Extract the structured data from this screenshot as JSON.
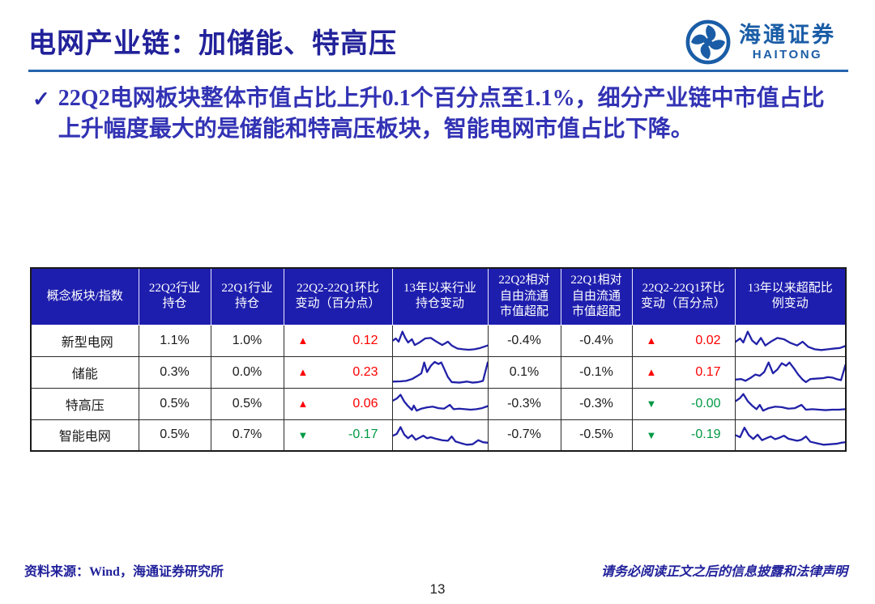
{
  "slide": {
    "title": "电网产业链：加储能、特高压",
    "page_number": "13"
  },
  "logo": {
    "name_cn": "海通证券",
    "name_en": "HAITONG"
  },
  "bullet": {
    "marker": "✓",
    "text": "22Q2电网板块整体市值占比上升0.1个百分点至1.1%，细分产业链中市值占比上升幅度最大的是储能和特高压板块，智能电网市值占比下降。"
  },
  "table": {
    "columns": [
      {
        "label": "概念板块/指数"
      },
      {
        "label": "22Q2行业\n持仓"
      },
      {
        "label": "22Q1行业\n持仓"
      },
      {
        "label": "22Q2-22Q1环比\n变动（百分点）"
      },
      {
        "label": "13年以来行业\n持仓变动"
      },
      {
        "label": "22Q2相对\n自由流通\n市值超配"
      },
      {
        "label": "22Q1相对\n自由流通\n市值超配"
      },
      {
        "label": "22Q2-22Q1环比\n变动（百分点）"
      },
      {
        "label": "13年以来超配比\n例变动"
      }
    ],
    "rows": [
      {
        "name": "新型电网",
        "q2_holding": "1.1%",
        "q1_holding": "1.0%",
        "chg_arrow": "▲",
        "chg_value": "0.12",
        "chg_color": "#FF0000",
        "ow_q2": "-0.4%",
        "ow_q1": "-0.4%",
        "ow_chg_arrow": "▲",
        "ow_chg_value": "0.02",
        "ow_chg_color": "#FF0000"
      },
      {
        "name": "储能",
        "q2_holding": "0.3%",
        "q1_holding": "0.0%",
        "chg_arrow": "▲",
        "chg_value": "0.23",
        "chg_color": "#FF0000",
        "ow_q2": "0.1%",
        "ow_q1": "-0.1%",
        "ow_chg_arrow": "▲",
        "ow_chg_value": "0.17",
        "ow_chg_color": "#FF0000"
      },
      {
        "name": "特高压",
        "q2_holding": "0.5%",
        "q1_holding": "0.5%",
        "chg_arrow": "▲",
        "chg_value": "0.06",
        "chg_color": "#FF0000",
        "ow_q2": "-0.3%",
        "ow_q1": "-0.3%",
        "ow_chg_arrow": "▼",
        "ow_chg_value": "-0.00",
        "ow_chg_color": "#009944"
      },
      {
        "name": "智能电网",
        "q2_holding": "0.5%",
        "q1_holding": "0.7%",
        "chg_arrow": "▼",
        "chg_value": "-0.17",
        "chg_color": "#009944",
        "ow_q2": "-0.7%",
        "ow_q1": "-0.5%",
        "ow_chg_arrow": "▼",
        "ow_chg_value": "-0.19",
        "ow_chg_color": "#009944"
      }
    ]
  },
  "footer": {
    "source": "资料来源：Wind，海通证券研究所",
    "disclaimer": "请务必阅读正文之后的信息披露和法律声明"
  },
  "colors": {
    "title_navy": "#22229B",
    "bullet_blue": "#3232B4",
    "accent_rule_blue": "#2565AE",
    "logo_blue": "#1A5DA6",
    "table_header_bg": "#1E1EAE",
    "table_header_text": "#FFFFFF",
    "change_cell_bg": "#D9D9D9",
    "up_red": "#FF0000",
    "down_green": "#009944",
    "sparkline": "#2121A8"
  },
  "chart_data": [
    {
      "type": "line",
      "title": "13年以来行业持仓变动",
      "xlabel": "",
      "ylabel": "",
      "grid": false,
      "legend": "none",
      "note": "sparklines per row, x 0-100 relative time since 2013, y 0-100 normalized holding level",
      "series": [
        {
          "name": "新型电网",
          "points": [
            [
              0,
              50
            ],
            [
              3,
              58
            ],
            [
              6,
              45
            ],
            [
              10,
              85
            ],
            [
              13,
              60
            ],
            [
              16,
              42
            ],
            [
              20,
              55
            ],
            [
              23,
              32
            ],
            [
              28,
              42
            ],
            [
              34,
              58
            ],
            [
              40,
              60
            ],
            [
              46,
              45
            ],
            [
              52,
              32
            ],
            [
              58,
              45
            ],
            [
              62,
              30
            ],
            [
              68,
              18
            ],
            [
              74,
              15
            ],
            [
              80,
              13
            ],
            [
              86,
              15
            ],
            [
              92,
              20
            ],
            [
              100,
              30
            ]
          ]
        },
        {
          "name": "储能",
          "points": [
            [
              0,
              12
            ],
            [
              8,
              13
            ],
            [
              14,
              15
            ],
            [
              20,
              22
            ],
            [
              26,
              35
            ],
            [
              30,
              45
            ],
            [
              33,
              88
            ],
            [
              36,
              50
            ],
            [
              40,
              75
            ],
            [
              44,
              90
            ],
            [
              48,
              82
            ],
            [
              51,
              88
            ],
            [
              55,
              55
            ],
            [
              58,
              30
            ],
            [
              62,
              10
            ],
            [
              70,
              8
            ],
            [
              78,
              12
            ],
            [
              84,
              8
            ],
            [
              90,
              10
            ],
            [
              95,
              15
            ],
            [
              100,
              88
            ]
          ]
        },
        {
          "name": "特高压",
          "points": [
            [
              0,
              62
            ],
            [
              4,
              70
            ],
            [
              8,
              85
            ],
            [
              12,
              58
            ],
            [
              16,
              40
            ],
            [
              20,
              25
            ],
            [
              22,
              42
            ],
            [
              25,
              22
            ],
            [
              30,
              30
            ],
            [
              36,
              35
            ],
            [
              42,
              38
            ],
            [
              48,
              32
            ],
            [
              54,
              30
            ],
            [
              60,
              45
            ],
            [
              64,
              28
            ],
            [
              70,
              30
            ],
            [
              76,
              28
            ],
            [
              82,
              26
            ],
            [
              88,
              28
            ],
            [
              94,
              32
            ],
            [
              100,
              40
            ]
          ]
        },
        {
          "name": "智能电网",
          "points": [
            [
              0,
              48
            ],
            [
              4,
              55
            ],
            [
              8,
              82
            ],
            [
              12,
              52
            ],
            [
              16,
              38
            ],
            [
              20,
              50
            ],
            [
              24,
              32
            ],
            [
              28,
              40
            ],
            [
              32,
              48
            ],
            [
              36,
              38
            ],
            [
              40,
              42
            ],
            [
              46,
              35
            ],
            [
              52,
              30
            ],
            [
              58,
              28
            ],
            [
              62,
              45
            ],
            [
              66,
              25
            ],
            [
              72,
              18
            ],
            [
              78,
              12
            ],
            [
              84,
              14
            ],
            [
              90,
              30
            ],
            [
              95,
              22
            ],
            [
              100,
              20
            ]
          ]
        }
      ]
    },
    {
      "type": "line",
      "title": "13年以来超配比例变动",
      "xlabel": "",
      "ylabel": "",
      "grid": false,
      "legend": "none",
      "note": "sparklines per row, x 0-100 relative time since 2013, y 0-100 normalized overweight ratio",
      "series": [
        {
          "name": "新型电网",
          "points": [
            [
              0,
              45
            ],
            [
              4,
              58
            ],
            [
              7,
              42
            ],
            [
              11,
              85
            ],
            [
              15,
              50
            ],
            [
              19,
              35
            ],
            [
              23,
              60
            ],
            [
              27,
              30
            ],
            [
              32,
              45
            ],
            [
              38,
              60
            ],
            [
              44,
              55
            ],
            [
              50,
              40
            ],
            [
              56,
              30
            ],
            [
              61,
              45
            ],
            [
              66,
              25
            ],
            [
              72,
              15
            ],
            [
              78,
              12
            ],
            [
              84,
              15
            ],
            [
              90,
              18
            ],
            [
              95,
              20
            ],
            [
              100,
              28
            ]
          ]
        },
        {
          "name": "储能",
          "points": [
            [
              0,
              20
            ],
            [
              5,
              22
            ],
            [
              9,
              15
            ],
            [
              14,
              28
            ],
            [
              18,
              40
            ],
            [
              22,
              35
            ],
            [
              26,
              50
            ],
            [
              30,
              88
            ],
            [
              34,
              45
            ],
            [
              38,
              60
            ],
            [
              42,
              85
            ],
            [
              46,
              75
            ],
            [
              49,
              88
            ],
            [
              53,
              65
            ],
            [
              57,
              40
            ],
            [
              61,
              20
            ],
            [
              64,
              10
            ],
            [
              68,
              22
            ],
            [
              74,
              24
            ],
            [
              80,
              26
            ],
            [
              84,
              30
            ],
            [
              88,
              28
            ],
            [
              92,
              22
            ],
            [
              96,
              18
            ],
            [
              100,
              78
            ]
          ]
        },
        {
          "name": "特高压",
          "points": [
            [
              0,
              60
            ],
            [
              4,
              72
            ],
            [
              7,
              88
            ],
            [
              11,
              60
            ],
            [
              15,
              42
            ],
            [
              19,
              28
            ],
            [
              22,
              45
            ],
            [
              25,
              22
            ],
            [
              30,
              32
            ],
            [
              36,
              38
            ],
            [
              42,
              36
            ],
            [
              48,
              30
            ],
            [
              54,
              32
            ],
            [
              60,
              45
            ],
            [
              64,
              26
            ],
            [
              70,
              28
            ],
            [
              76,
              26
            ],
            [
              82,
              24
            ],
            [
              88,
              26
            ],
            [
              94,
              26
            ],
            [
              100,
              28
            ]
          ]
        },
        {
          "name": "智能电网",
          "points": [
            [
              0,
              50
            ],
            [
              4,
              42
            ],
            [
              8,
              80
            ],
            [
              12,
              50
            ],
            [
              16,
              35
            ],
            [
              20,
              52
            ],
            [
              24,
              30
            ],
            [
              28,
              38
            ],
            [
              32,
              45
            ],
            [
              36,
              34
            ],
            [
              40,
              40
            ],
            [
              44,
              48
            ],
            [
              48,
              36
            ],
            [
              52,
              32
            ],
            [
              56,
              28
            ],
            [
              60,
              32
            ],
            [
              64,
              45
            ],
            [
              68,
              24
            ],
            [
              74,
              18
            ],
            [
              80,
              12
            ],
            [
              86,
              14
            ],
            [
              92,
              16
            ],
            [
              96,
              20
            ],
            [
              100,
              22
            ]
          ]
        }
      ]
    }
  ]
}
